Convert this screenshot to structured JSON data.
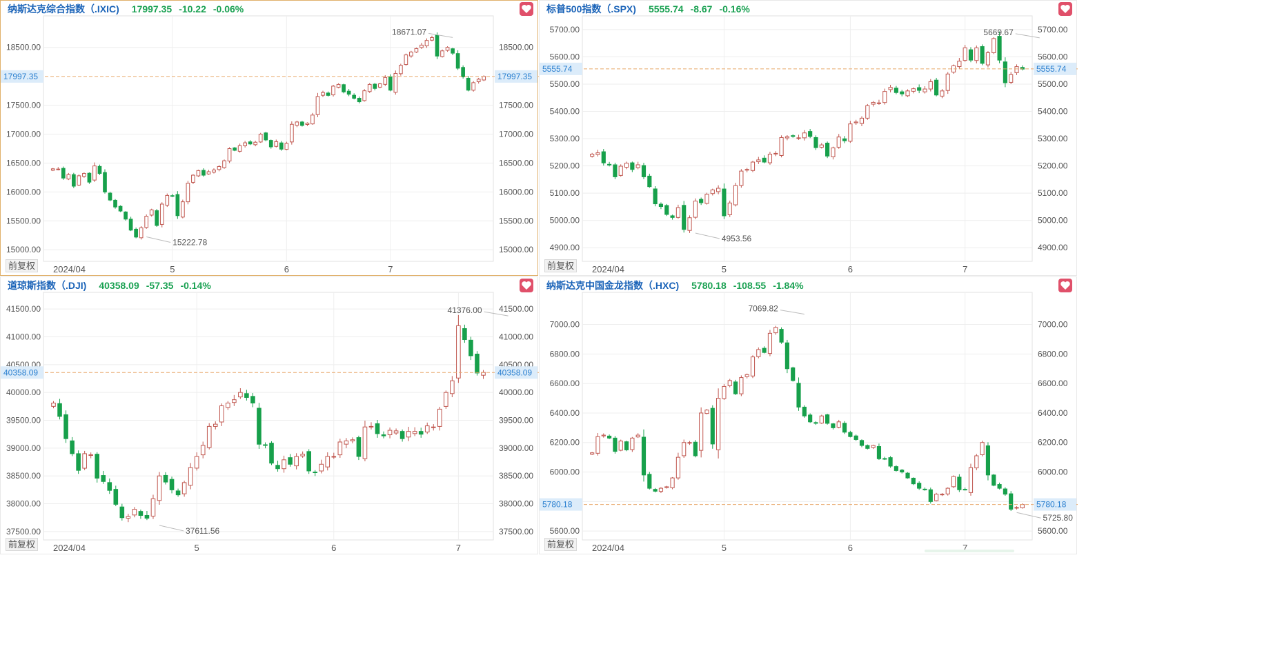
{
  "ui": {
    "adjust_label": "前复权"
  },
  "colors": {
    "up": "#c0564e",
    "down": "#17a04b",
    "grid": "#eeeeee",
    "price_line": "#e8a668",
    "price_tag_bg": "#dcecfa",
    "price_tag_text": "#1aa152",
    "label": "#555555",
    "name": "#1a63b8",
    "fav": "#e0506a"
  },
  "chart_data": [
    {
      "type": "candlestick",
      "name": "纳斯达克综合指数（.IXIC)",
      "last": "17997.35",
      "change": "-10.22",
      "change_pct": "-0.06%",
      "ylim": [
        14800,
        18950
      ],
      "yticks": [
        "15000.00",
        "15500.00",
        "16000.00",
        "16500.00",
        "17000.00",
        "17500.00",
        "18500.00"
      ],
      "current": 17997.35,
      "current_label": "17997.35",
      "high_label": "18671.07",
      "high_value": 18671.07,
      "high_index": 77,
      "low_label": "15222.78",
      "low_value": 15222.78,
      "low_index": 18,
      "x_labels": [
        {
          "text": "2024/04",
          "index": 0
        },
        {
          "text": "5",
          "index": 23
        },
        {
          "text": "6",
          "index": 45
        },
        {
          "text": "7",
          "index": 65
        }
      ],
      "closes": [
        16400,
        16396,
        16240,
        16300,
        16100,
        16280,
        16320,
        16170,
        16450,
        16320,
        16000,
        15860,
        15740,
        15670,
        15530,
        15340,
        15220,
        15380,
        15580,
        15690,
        15420,
        15790,
        15940,
        15930,
        15590,
        15830,
        16150,
        16290,
        16370,
        16290,
        16350,
        16380,
        16440,
        16540,
        16750,
        16720,
        16800,
        16850,
        16830,
        16860,
        17000,
        16900,
        16780,
        16870,
        16740,
        16840,
        17170,
        17210,
        17150,
        17190,
        17330,
        17650,
        17720,
        17670,
        17830,
        17860,
        17730,
        17690,
        17620,
        17560,
        17750,
        17860,
        17790,
        17870,
        17980,
        17760,
        18050,
        18190,
        18370,
        18420,
        18480,
        18540,
        18620,
        18670,
        18350,
        18440,
        18500,
        18400,
        18140,
        17990,
        17760,
        17890,
        17950,
        17997
      ]
    },
    {
      "type": "candlestick",
      "name": "标普500指数（.SPX)",
      "last": "5555.74",
      "change": "-8.67",
      "change_pct": "-0.16%",
      "ylim": [
        4850,
        5730
      ],
      "yticks": [
        "4900.00",
        "5000.00",
        "5100.00",
        "5200.00",
        "5300.00",
        "5400.00",
        "5500.00",
        "5600.00",
        "5700.00"
      ],
      "current": 5555.74,
      "current_label": "5555.74",
      "high_label": "5669.67",
      "high_value": 5669.67,
      "high_index": 78,
      "low_label": "4953.56",
      "low_value": 4953.56,
      "low_index": 18,
      "x_labels": [
        {
          "text": "2024/04",
          "index": 0
        },
        {
          "text": "5",
          "index": 23
        },
        {
          "text": "6",
          "index": 45
        },
        {
          "text": "7",
          "index": 65
        }
      ],
      "closes": [
        5243,
        5248,
        5211,
        5204,
        5160,
        5199,
        5210,
        5187,
        5204,
        5160,
        5124,
        5061,
        5051,
        5022,
        5011,
        5047,
        4967,
        5010,
        5071,
        5065,
        5096,
        5112,
        5118,
        5017,
        5064,
        5128,
        5181,
        5187,
        5214,
        5222,
        5214,
        5243,
        5246,
        5304,
        5307,
        5308,
        5303,
        5321,
        5308,
        5267,
        5277,
        5236,
        5266,
        5306,
        5292,
        5354,
        5361,
        5375,
        5421,
        5433,
        5431,
        5473,
        5488,
        5469,
        5464,
        5475,
        5483,
        5477,
        5482,
        5509,
        5460,
        5475,
        5537,
        5567,
        5584,
        5633,
        5588,
        5633,
        5576,
        5615,
        5667,
        5588,
        5505,
        5535,
        5564,
        5555
      ]
    },
    {
      "type": "candlestick",
      "name": "道琼斯指数（.DJI)",
      "last": "40358.09",
      "change": "-57.35",
      "change_pct": "-0.14%",
      "ylim": [
        37350,
        41700
      ],
      "yticks": [
        "37500.00",
        "38000.00",
        "38500.00",
        "39000.00",
        "39500.00",
        "40000.00",
        "40500.00",
        "41000.00",
        "41500.00"
      ],
      "current": 40358.09,
      "current_label": "40358.09",
      "high_label": "41376.00",
      "high_value": 41376.0,
      "high_index": 73,
      "low_label": "37611.56",
      "low_value": 37611.56,
      "low_index": 17,
      "x_labels": [
        {
          "text": "2024/04",
          "index": 0
        },
        {
          "text": "5",
          "index": 23
        },
        {
          "text": "6",
          "index": 45
        },
        {
          "text": "7",
          "index": 65
        }
      ],
      "closes": [
        39810,
        39570,
        39170,
        38900,
        38600,
        38900,
        38880,
        38460,
        38400,
        38240,
        37990,
        37750,
        37770,
        37900,
        37790,
        37740,
        38090,
        38500,
        38390,
        38250,
        38160,
        38380,
        38650,
        38850,
        39050,
        39390,
        39430,
        39760,
        39810,
        39870,
        40000,
        39910,
        39810,
        39070,
        39060,
        38730,
        38630,
        38790,
        38710,
        38850,
        38890,
        38590,
        38570,
        38710,
        38850,
        38850,
        39110,
        39130,
        39150,
        38850,
        39380,
        39390,
        39260,
        39220,
        39320,
        39310,
        39170,
        39300,
        39300,
        39250,
        39400,
        39380,
        39700,
        40000,
        40210,
        41200,
        40950,
        40660,
        40350,
        40360
      ]
    },
    {
      "type": "candlestick",
      "name": "纳斯达克中国金龙指数（.HXC)",
      "last": "5780.18",
      "change": "-108.55",
      "change_pct": "-1.84%",
      "ylim": [
        5540,
        7180
      ],
      "yticks": [
        "5600.00",
        "5800.00",
        "6000.00",
        "6200.00",
        "6400.00",
        "6600.00",
        "6800.00",
        "7000.00"
      ],
      "current": 5780.18,
      "current_label": "5780.18",
      "high_label": "7069.82",
      "high_value": 7069.82,
      "high_index": 37,
      "low_label": "5725.80",
      "low_value": 5725.8,
      "low_index": 74,
      "x_labels": [
        {
          "text": "2024/04",
          "index": 0
        },
        {
          "text": "5",
          "index": 23
        },
        {
          "text": "6",
          "index": 45
        },
        {
          "text": "7",
          "index": 65
        }
      ],
      "closes": [
        6130,
        6240,
        6250,
        6230,
        6140,
        6210,
        6150,
        6230,
        6250,
        5980,
        5890,
        5870,
        5890,
        5900,
        5960,
        6100,
        6200,
        6200,
        6110,
        6400,
        6420,
        6190,
        6500,
        6580,
        6620,
        6530,
        6640,
        6660,
        6780,
        6830,
        6810,
        6940,
        6980,
        6880,
        6700,
        6620,
        6440,
        6380,
        6340,
        6330,
        6380,
        6330,
        6300,
        6340,
        6270,
        6240,
        6220,
        6180,
        6160,
        6180,
        6090,
        6090,
        6040,
        6010,
        6000,
        5960,
        5920,
        5890,
        5880,
        5800,
        5850,
        5850,
        5890,
        5970,
        5880,
        5880,
        6030,
        6110,
        6200,
        5980,
        5910,
        5890,
        5850,
        5748,
        5760,
        5780
      ]
    }
  ]
}
